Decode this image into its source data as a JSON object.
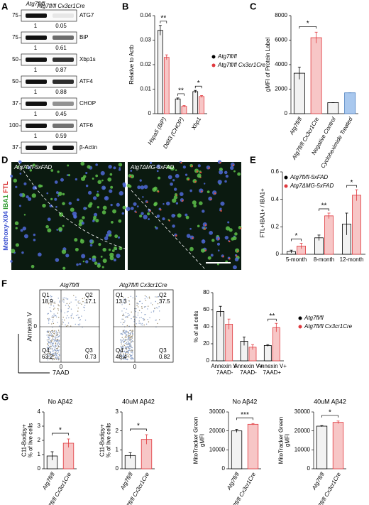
{
  "panels": [
    "A",
    "B",
    "C",
    "D",
    "E",
    "F",
    "G",
    "H"
  ],
  "blot": {
    "headers": [
      "Atg7fl/fl",
      "Atg7fl/fl Cx3cr1Cre"
    ],
    "rows": [
      {
        "marker": 75,
        "protein": "ATG7",
        "quant": [
          1,
          0.05
        ]
      },
      {
        "marker": 75,
        "protein": "BiP",
        "quant": [
          1,
          0.61
        ]
      },
      {
        "marker": 50,
        "protein": "Xbp1s",
        "quant": [
          1,
          0.87
        ]
      },
      {
        "marker": 50,
        "protein": "ATF4",
        "quant": [
          1,
          0.88
        ]
      },
      {
        "marker": 37,
        "protein": "CHOP",
        "quant": [
          1,
          0.45
        ]
      },
      {
        "marker": 100,
        "protein": "ATF6",
        "quant": [
          1,
          0.59
        ]
      },
      {
        "marker": 37,
        "protein": "β-Actin"
      }
    ]
  },
  "images": {
    "labels": [
      "Atg7fl/fl-5xFAD",
      "Atg7ΔMG-5xFAD"
    ],
    "stain": [
      "Methoxy-X04",
      "IBA1",
      "FTL"
    ]
  },
  "flow": {
    "ylabel": "Annexin V",
    "xlabel": "7AAD",
    "zero": 0,
    "plots": [
      {
        "title": "Atg7fl/fl",
        "quadrants": [
          {
            "name": "Q1",
            "value": 18.9
          },
          {
            "name": "Q2",
            "value": 17.1
          },
          {
            "name": "Q4",
            "value": 63.2
          },
          {
            "name": "Q3",
            "value": 0.73
          }
        ]
      },
      {
        "title": "Atg7fl/fl Cx3cr1Cre",
        "quadrants": [
          {
            "name": "Q1",
            "value": 13.3
          },
          {
            "name": "Q2",
            "value": 37.5
          },
          {
            "name": "Q4",
            "value": 48.4
          },
          {
            "name": "Q3",
            "value": 0.82
          }
        ]
      }
    ]
  },
  "chart_data": [
    {
      "type": "bar",
      "ylabel": "Relative to Actb",
      "categories": [
        "Hspa5 (BiP)",
        "Ddit3 (CHOP)",
        "Xbp1"
      ],
      "series": [
        {
          "name": "Atg7fl/fl",
          "color": "#f2f2f2",
          "edge": "#000000",
          "values": [
            0.034,
            0.006,
            0.009
          ],
          "errors": [
            0.002,
            0.0004,
            0.0005
          ]
        },
        {
          "name": "Atg7fl/fl Cx3cr1Cre",
          "color": "#f7c6c6",
          "edge": "#e0393e",
          "values": [
            0.023,
            0.003,
            0.007
          ],
          "errors": [
            0.001,
            0.0003,
            0.0004
          ]
        }
      ],
      "ylim": [
        0,
        0.04
      ],
      "yticks": [
        0,
        0.01,
        0.02,
        0.03,
        0.04
      ],
      "significance": [
        "**",
        "**",
        "*"
      ]
    },
    {
      "type": "bar",
      "ylabel": "gMFI of Protein Label",
      "categories": [
        "Atg7fl/fl",
        "Atg7fl/fl Cx3cr1Cre",
        "Negative Control",
        "Cycloheximide Treated"
      ],
      "series": [
        {
          "colors": [
            "#f2f2f2",
            "#f7c6c6",
            "#f2f2f2",
            "#a9c8ee"
          ],
          "edges": [
            "#000000",
            "#e0393e",
            "#000000",
            "#4a7fc1"
          ],
          "values": [
            3300,
            6200,
            900,
            1700
          ],
          "errors": [
            500,
            450,
            0,
            0
          ]
        }
      ],
      "ylim": [
        0,
        8000
      ],
      "yticks": [
        0,
        2000,
        4000,
        6000,
        8000
      ],
      "significance": "*"
    },
    {
      "type": "bar",
      "ylabel": "FTL+IBA1+ / IBA1+",
      "categories": [
        "5-month",
        "8-month",
        "12-month"
      ],
      "series": [
        {
          "name": "Atg7fl/fl-5xFAD",
          "color": "#f2f2f2",
          "edge": "#000000",
          "values": [
            0.02,
            0.12,
            0.22
          ],
          "errors": [
            0.01,
            0.02,
            0.08
          ]
        },
        {
          "name": "Atg7ΔMG-5xFAD",
          "color": "#f7c6c6",
          "edge": "#e0393e",
          "values": [
            0.06,
            0.28,
            0.43
          ],
          "errors": [
            0.02,
            0.02,
            0.04
          ]
        }
      ],
      "ylim": [
        0,
        0.6
      ],
      "yticks": [
        0,
        0.2,
        0.4,
        0.6
      ],
      "significance": [
        "*",
        "**",
        "*"
      ]
    },
    {
      "type": "bar",
      "ylabel": "% of all cells",
      "categories": [
        [
          "Annexin V-",
          "7AAD-"
        ],
        [
          "Annexin V+",
          "7AAD-"
        ],
        [
          "Annexin V+",
          "7AAD+"
        ]
      ],
      "series": [
        {
          "name": "Atg7fl/fl",
          "color": "#f2f2f2",
          "edge": "#000000",
          "values": [
            58,
            23,
            18
          ],
          "errors": [
            6,
            5,
            1
          ]
        },
        {
          "name": "Atg7fl/fl Cx3cr1Cre",
          "color": "#f7c6c6",
          "edge": "#e0393e",
          "values": [
            43,
            16,
            39
          ],
          "errors": [
            6,
            3,
            5
          ]
        }
      ],
      "ylim": [
        0,
        80
      ],
      "yticks": [
        0,
        20,
        40,
        60,
        80
      ],
      "significance": [
        null,
        null,
        "**"
      ]
    },
    {
      "type": "bar",
      "title": "No Aβ42",
      "ylabel": [
        "C11-Bodipy+",
        "% of live cells"
      ],
      "categories": [
        "Atg7fl/fl",
        "Atg7fl/fl Cx3cr1Cre"
      ],
      "series": [
        {
          "colors": [
            "#f2f2f2",
            "#f7c6c6"
          ],
          "edges": [
            "#000000",
            "#e0393e"
          ],
          "values": [
            0.9,
            1.8
          ],
          "errors": [
            0.3,
            0.3
          ]
        }
      ],
      "ylim": [
        0,
        4
      ],
      "yticks": [
        0,
        1,
        2,
        3,
        4
      ],
      "significance": "*"
    },
    {
      "type": "bar",
      "title": "40uM Aβ42",
      "ylabel": [
        "C11-Bodipy+",
        "% of live cells"
      ],
      "categories": [
        "Atg7fl/fl",
        "Atg7fl/fl Cx3cr1Cre"
      ],
      "series": [
        {
          "colors": [
            "#f2f2f2",
            "#f7c6c6"
          ],
          "edges": [
            "#000000",
            "#e0393e"
          ],
          "values": [
            0.7,
            1.55
          ],
          "errors": [
            0.15,
            0.25
          ]
        }
      ],
      "ylim": [
        0,
        3
      ],
      "yticks": [
        0,
        1,
        2,
        3
      ],
      "significance": "*"
    },
    {
      "type": "bar",
      "title": "No Aβ42",
      "ylabel": [
        "MitoTracker Green",
        "gMFI"
      ],
      "categories": [
        "Atg7fl/fl",
        "Atg7fl/fl Cx3cr1Cre"
      ],
      "series": [
        {
          "colors": [
            "#f2f2f2",
            "#f7c6c6"
          ],
          "edges": [
            "#000000",
            "#e0393e"
          ],
          "values": [
            20000,
            23500
          ],
          "errors": [
            800,
            400
          ]
        }
      ],
      "ylim": [
        0,
        30000
      ],
      "yticks": [
        0,
        10000,
        20000,
        30000
      ],
      "significance": "***"
    },
    {
      "type": "bar",
      "title": "40uM Aβ42",
      "ylabel": [
        "MitoTracker Green",
        "gMFI"
      ],
      "categories": [
        "Atg7fl/fl",
        "Atg7fl/fl Cx3cr1Cre"
      ],
      "series": [
        {
          "colors": [
            "#f2f2f2",
            "#f7c6c6"
          ],
          "edges": [
            "#000000",
            "#e0393e"
          ],
          "values": [
            22500,
            24500
          ],
          "errors": [
            300,
            700
          ]
        }
      ],
      "ylim": [
        0,
        30000
      ],
      "yticks": [
        0,
        10000,
        20000,
        30000
      ],
      "significance": "*"
    }
  ]
}
